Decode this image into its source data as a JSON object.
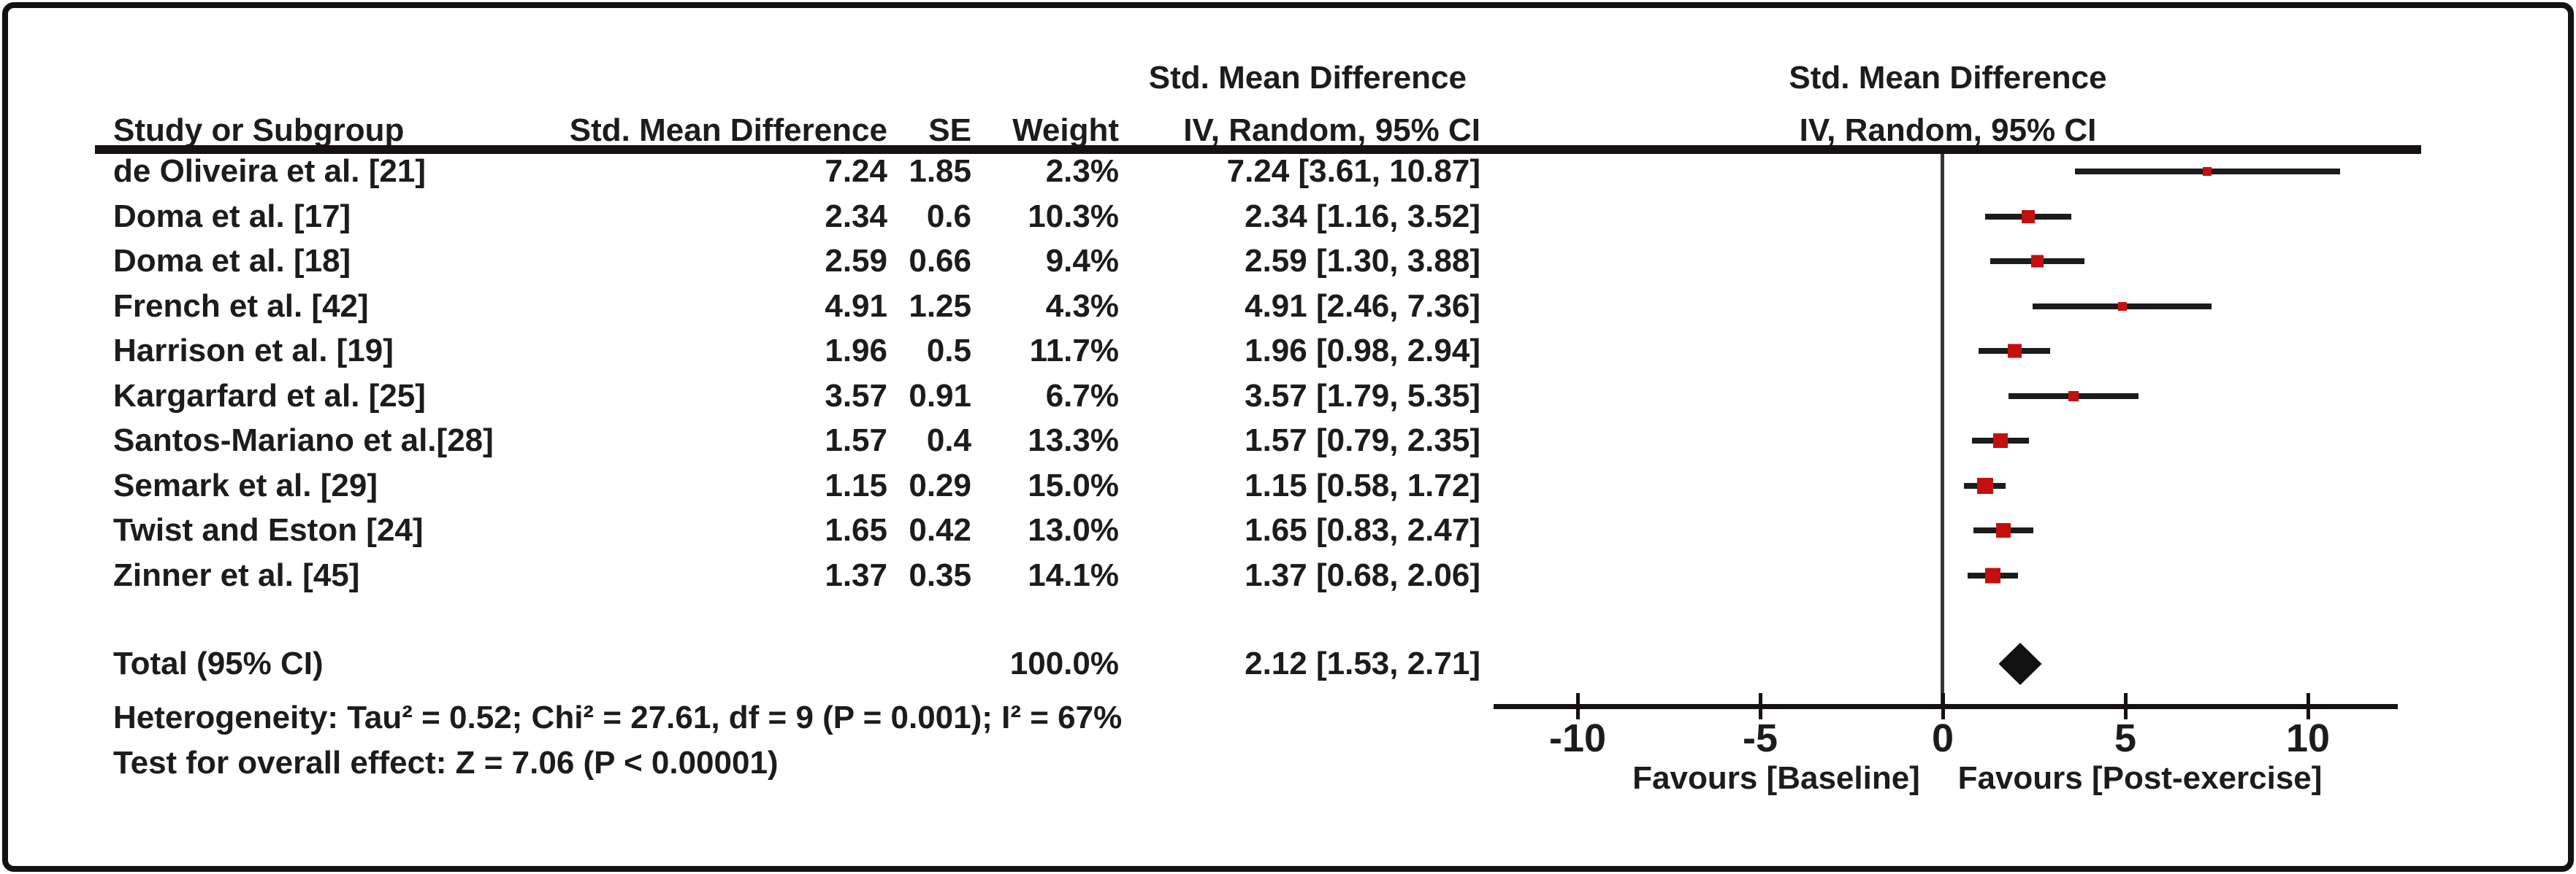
{
  "chart_data": {
    "type": "forest",
    "title": "",
    "headers": {
      "effect_measure": "Std. Mean Difference",
      "study": "Study or Subgroup",
      "smd_col": "Std. Mean Difference",
      "se_col": "SE",
      "weight_col": "Weight",
      "method_ci": "IV, Random, 95% CI",
      "plot_line1": "Std. Mean Difference",
      "plot_line2": "IV, Random, 95% CI"
    },
    "studies": [
      {
        "name": "de Oliveira et al. [21]",
        "smd": "7.24",
        "se": "1.85",
        "weight": "2.3%",
        "ci_text": "7.24 [3.61, 10.87]",
        "est": 7.24,
        "lo": 3.61,
        "hi": 10.87,
        "weight_pct": 2.3
      },
      {
        "name": "Doma et al. [17]",
        "smd": "2.34",
        "se": "0.6",
        "weight": "10.3%",
        "ci_text": "2.34 [1.16, 3.52]",
        "est": 2.34,
        "lo": 1.16,
        "hi": 3.52,
        "weight_pct": 10.3
      },
      {
        "name": "Doma et al. [18]",
        "smd": "2.59",
        "se": "0.66",
        "weight": "9.4%",
        "ci_text": "2.59 [1.30, 3.88]",
        "est": 2.59,
        "lo": 1.3,
        "hi": 3.88,
        "weight_pct": 9.4
      },
      {
        "name": "French et al. [42]",
        "smd": "4.91",
        "se": "1.25",
        "weight": "4.3%",
        "ci_text": "4.91 [2.46, 7.36]",
        "est": 4.91,
        "lo": 2.46,
        "hi": 7.36,
        "weight_pct": 4.3
      },
      {
        "name": "Harrison et al. [19]",
        "smd": "1.96",
        "se": "0.5",
        "weight": "11.7%",
        "ci_text": "1.96 [0.98, 2.94]",
        "est": 1.96,
        "lo": 0.98,
        "hi": 2.94,
        "weight_pct": 11.7
      },
      {
        "name": "Kargarfard et al. [25]",
        "smd": "3.57",
        "se": "0.91",
        "weight": "6.7%",
        "ci_text": "3.57 [1.79, 5.35]",
        "est": 3.57,
        "lo": 1.79,
        "hi": 5.35,
        "weight_pct": 6.7
      },
      {
        "name": "Santos-Mariano et al.[28]",
        "smd": "1.57",
        "se": "0.4",
        "weight": "13.3%",
        "ci_text": "1.57 [0.79, 2.35]",
        "est": 1.57,
        "lo": 0.79,
        "hi": 2.35,
        "weight_pct": 13.3
      },
      {
        "name": "Semark et al. [29]",
        "smd": "1.15",
        "se": "0.29",
        "weight": "15.0%",
        "ci_text": "1.15 [0.58, 1.72]",
        "est": 1.15,
        "lo": 0.58,
        "hi": 1.72,
        "weight_pct": 15.0
      },
      {
        "name": "Twist and Eston [24]",
        "smd": "1.65",
        "se": "0.42",
        "weight": "13.0%",
        "ci_text": "1.65 [0.83, 2.47]",
        "est": 1.65,
        "lo": 0.83,
        "hi": 2.47,
        "weight_pct": 13.0
      },
      {
        "name": "Zinner et al. [45]",
        "smd": "1.37",
        "se": "0.35",
        "weight": "14.1%",
        "ci_text": "1.37 [0.68, 2.06]",
        "est": 1.37,
        "lo": 0.68,
        "hi": 2.06,
        "weight_pct": 14.1
      }
    ],
    "total": {
      "label": "Total (95% CI)",
      "weight": "100.0%",
      "ci_text": "2.12 [1.53, 2.71]",
      "est": 2.12,
      "lo": 1.53,
      "hi": 2.71
    },
    "footnotes": {
      "heterogeneity": "Heterogeneity: Tau² = 0.52; Chi² = 27.61, df = 9 (P = 0.001); I² = 67%",
      "overall_effect": "Test for overall effect: Z = 7.06 (P < 0.00001)"
    },
    "axis": {
      "xlim": [
        -12.3,
        12.45
      ],
      "ticks": [
        {
          "label": "-10",
          "value": -10
        },
        {
          "label": "-5",
          "value": -5
        },
        {
          "label": "0",
          "value": 0
        },
        {
          "label": "5",
          "value": 5
        },
        {
          "label": "10",
          "value": 10
        }
      ],
      "left_label": "Favours [Baseline]",
      "right_label": "Favours [Post-exercise]",
      "grid": false,
      "legend": "none"
    },
    "colors": {
      "marker": "#c40f0f",
      "diamond": "#111111",
      "line": "#1c1c1c",
      "text": "#1e1b1b"
    }
  }
}
